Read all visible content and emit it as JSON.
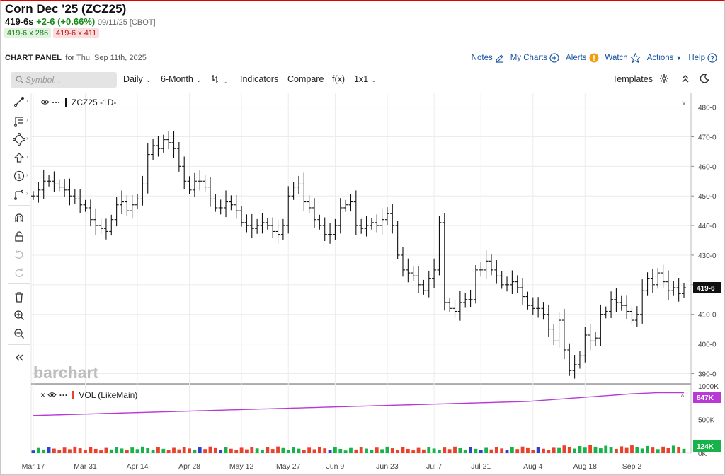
{
  "quote": {
    "title": "Corn Dec '25 (ZCZ25)",
    "last": "419-6s",
    "change": "+2-6 (+0.66%)",
    "meta": "09/11/25 [CBOT]",
    "bid": "419-6 x 286",
    "ask": "419-6 x 411"
  },
  "panel": {
    "title": "CHART PANEL",
    "subtitle": "for Thu, Sep 11th, 2025"
  },
  "links": {
    "notes": "Notes",
    "mycharts": "My Charts",
    "alerts": "Alerts",
    "watch": "Watch",
    "actions": "Actions",
    "help": "Help"
  },
  "toolbar": {
    "symbol_placeholder": "Symbol...",
    "interval": "Daily",
    "range": "6-Month",
    "indicators": "Indicators",
    "compare": "Compare",
    "fx": "f(x)",
    "layout": "1x1",
    "templates": "Templates"
  },
  "study": {
    "price_label": "ZCZ25 -1D-",
    "volume_label": "VOL (LikeMain)"
  },
  "colors": {
    "up": "#18b24a",
    "down": "#e8412c",
    "neutral": "#2a45c8",
    "oi": "#b83ad6",
    "bars": "#111111"
  },
  "chart_data": {
    "type": "ohlc",
    "price_axis": {
      "ticks": [
        "480-0",
        "470-0",
        "460-0",
        "450-0",
        "440-0",
        "430-0",
        "420-0",
        "410-0",
        "400-0",
        "390-0"
      ],
      "range": [
        387,
        483
      ]
    },
    "volume_axis": {
      "ticks": [
        "1000K",
        "500K",
        "0K"
      ],
      "range": [
        0,
        1000
      ]
    },
    "x_labels": [
      {
        "label": "Mar 17",
        "i": 0
      },
      {
        "label": "Mar 31",
        "i": 10
      },
      {
        "label": "Apr 14",
        "i": 20
      },
      {
        "label": "Apr 28",
        "i": 30
      },
      {
        "label": "May 12",
        "i": 40
      },
      {
        "label": "May 27",
        "i": 49
      },
      {
        "label": "Jun 9",
        "i": 58
      },
      {
        "label": "Jun 23",
        "i": 68
      },
      {
        "label": "Jul 7",
        "i": 77
      },
      {
        "label": "Jul 21",
        "i": 86
      },
      {
        "label": "Aug 4",
        "i": 96
      },
      {
        "label": "Aug 18",
        "i": 106
      },
      {
        "label": "Sep 2",
        "i": 115
      }
    ],
    "close": [
      450,
      452,
      455,
      455,
      454,
      453,
      452,
      450,
      449,
      447,
      446,
      442,
      440,
      439,
      438,
      442,
      447,
      448,
      445,
      447,
      449,
      454,
      464,
      467,
      466,
      469,
      468,
      466,
      460,
      455,
      452,
      455,
      455,
      453,
      449,
      446,
      446,
      448,
      447,
      445,
      441,
      440,
      439,
      440,
      441,
      440,
      438,
      437,
      440,
      450,
      453,
      454,
      448,
      446,
      442,
      440,
      437,
      437,
      440,
      446,
      447,
      448,
      440,
      439,
      440,
      441,
      440,
      442,
      444,
      440,
      430,
      425,
      424,
      423,
      420,
      418,
      422,
      425,
      441,
      414,
      412,
      411,
      414,
      415,
      415,
      425,
      425,
      428,
      425,
      423,
      420,
      420,
      421,
      419,
      416,
      413,
      412,
      412,
      410,
      405,
      401,
      408,
      398,
      391,
      393,
      396,
      403,
      401,
      402,
      410,
      411,
      415,
      414,
      413,
      411,
      408,
      410,
      418,
      422,
      420,
      424,
      421,
      418,
      419,
      417,
      419
    ],
    "last_tag": "419-6",
    "volume_last_tag": "124K",
    "oi_last_tag": "847K"
  }
}
